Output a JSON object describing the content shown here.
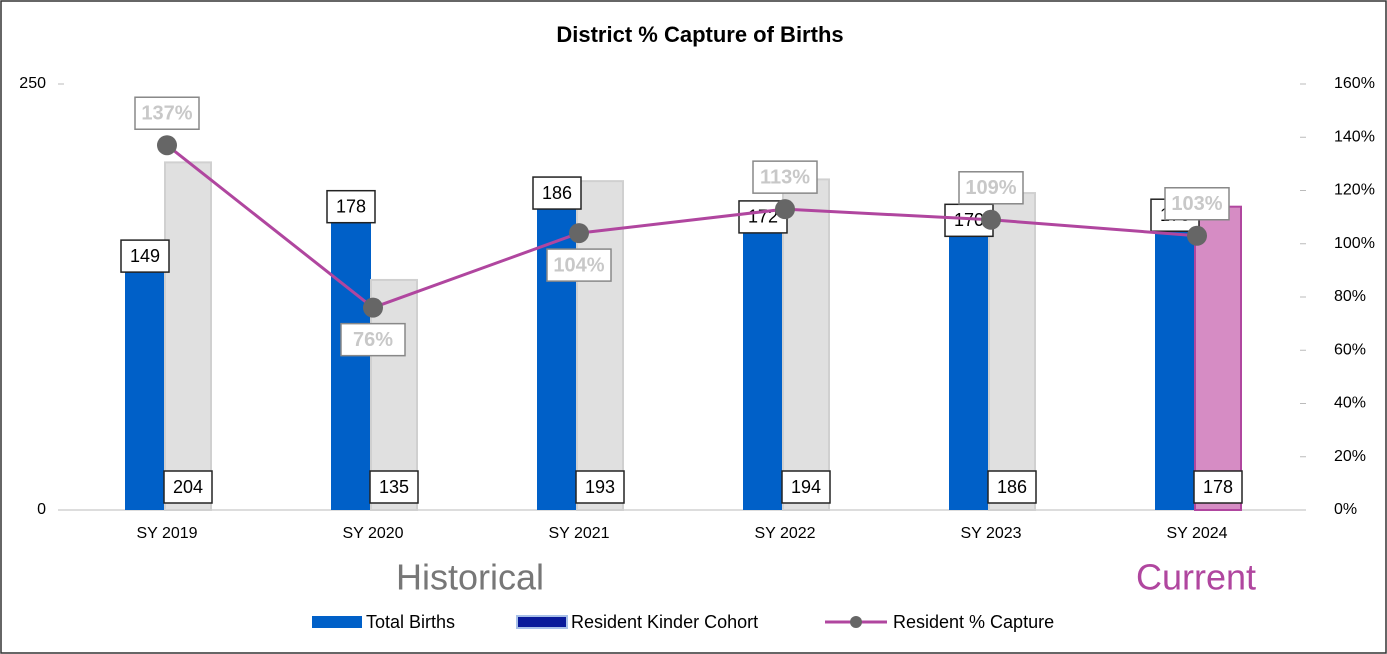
{
  "chart_data": {
    "type": "bar_line",
    "title": "District % Capture of Births",
    "categories": [
      "SY 2019",
      "SY 2020",
      "SY 2021",
      "SY 2022",
      "SY 2023",
      "SY 2024"
    ],
    "series": [
      {
        "name": "Total Births",
        "type": "bar",
        "color": "#0060c8",
        "values": [
          149,
          178,
          186,
          172,
          170,
          173
        ]
      },
      {
        "name": "Resident Kinder Cohort",
        "type": "bar",
        "color": "#e0e0e0",
        "legend_color": "#0a1a9a",
        "colors": [
          "#e0e0e0",
          "#e0e0e0",
          "#e0e0e0",
          "#e0e0e0",
          "#e0e0e0",
          "#d68cc4"
        ],
        "values": [
          204,
          135,
          193,
          194,
          186,
          178
        ]
      },
      {
        "name": "Resident % Capture",
        "type": "line",
        "axis": "y2",
        "color": "#b0469f",
        "marker_color": "#666666",
        "values": [
          137,
          76,
          104,
          113,
          109,
          103
        ],
        "value_labels": [
          "137%",
          "76%",
          "104%",
          "113%",
          "109%",
          "103%"
        ]
      }
    ],
    "ylim": [
      0,
      250
    ],
    "yticks": [
      0,
      250
    ],
    "y2lim": [
      0,
      160
    ],
    "y2ticks": [
      {
        "value": 0,
        "label": "0%"
      },
      {
        "value": 20,
        "label": "20%"
      },
      {
        "value": 40,
        "label": "40%"
      },
      {
        "value": 60,
        "label": "60%"
      },
      {
        "value": 80,
        "label": "80%"
      },
      {
        "value": 100,
        "label": "100%"
      },
      {
        "value": 120,
        "label": "120%"
      },
      {
        "value": 140,
        "label": "140%"
      },
      {
        "value": 160,
        "label": "160%"
      }
    ],
    "annotations": [
      {
        "text": "Historical",
        "color": "#777777"
      },
      {
        "text": "Current",
        "color": "#b0469f"
      }
    ],
    "legend": "bottom"
  }
}
